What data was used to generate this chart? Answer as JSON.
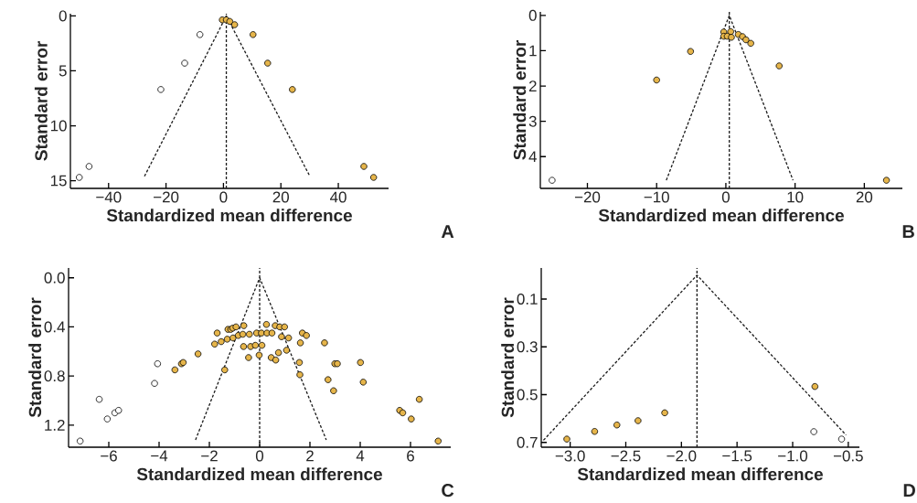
{
  "chart_data": [
    {
      "type": "scatter",
      "xlabel": "Standardized mean difference",
      "ylabel": "Standard error",
      "annotations": [
        "A"
      ],
      "marker": "circle",
      "xlim": [
        -53.3,
        57.5
      ],
      "ylim": [
        15.7,
        -0.2
      ],
      "xticks": [
        {
          "value": -40,
          "label": "−40"
        },
        {
          "value": -20,
          "label": "−20"
        },
        0,
        20,
        40
      ],
      "yticks": [
        0,
        5,
        10,
        15
      ],
      "ref_lines": [
        {
          "axis": "x",
          "value": 1.0,
          "color": "#1a1a1a",
          "line_style": "dashed"
        }
      ],
      "series": [
        {
          "color": "#e6b54a",
          "x": [
            -0.4,
            1.0,
            2.2,
            3.9,
            10.3,
            15.4,
            24,
            48.9,
            52.3
          ],
          "values": [
            0.36,
            0.36,
            0.5,
            0.8,
            1.7,
            4.3,
            6.7,
            13.7,
            14.7
          ]
        },
        {
          "color": "#ffffff",
          "x": [
            -8.2,
            -13.5,
            -21.8,
            -46.8,
            -50.2
          ],
          "values": [
            1.7,
            4.3,
            6.7,
            13.7,
            14.7
          ]
        },
        {
          "type": "line",
          "marker": "none",
          "line_style": "dashed",
          "color": "#1a1a1a",
          "x": [
            -27.5,
            1.0,
            30.1
          ],
          "values": [
            14.6,
            0,
            14.6
          ]
        }
      ]
    },
    {
      "type": "scatter",
      "xlabel": "Standardized mean difference",
      "ylabel": "Standard error",
      "annotations": [
        "B"
      ],
      "marker": "circle",
      "xlim": [
        -26.8,
        25.5
      ],
      "ylim": [
        4.9,
        -0.1
      ],
      "xticks": [
        {
          "value": -20,
          "label": "−20"
        },
        {
          "value": -10,
          "label": "−10"
        },
        0,
        10,
        20
      ],
      "yticks": [
        0,
        1,
        2,
        3,
        4
      ],
      "ref_lines": [
        {
          "axis": "x",
          "value": 0.5,
          "color": "#1a1a1a",
          "line_style": "dashed"
        }
      ],
      "series": [
        {
          "color": "#e6b54a",
          "x": [
            -0.3,
            0.7,
            -0.3,
            0.2,
            0.8,
            1.8,
            2.4,
            2.9,
            3.6,
            -5.1,
            -10.0,
            7.7,
            23.2
          ],
          "values": [
            0.47,
            0.46,
            0.59,
            0.59,
            0.62,
            0.54,
            0.6,
            0.69,
            0.79,
            1.02,
            1.83,
            1.43,
            4.67
          ]
        },
        {
          "color": "#ffffff",
          "x": [
            -25.1
          ],
          "values": [
            4.67
          ]
        },
        {
          "type": "line",
          "marker": "none",
          "line_style": "dashed",
          "color": "#1a1a1a",
          "x": [
            -8.6,
            0.5,
            9.7
          ],
          "values": [
            4.67,
            0,
            4.67
          ]
        }
      ]
    },
    {
      "type": "scatter",
      "xlabel": "Standardized mean difference",
      "ylabel": "Standard error",
      "annotations": [
        "C"
      ],
      "marker": "circle",
      "xlim": [
        -7.6,
        7.6
      ],
      "ylim": [
        1.38,
        -0.08
      ],
      "xticks": [
        {
          "value": -6,
          "label": "−6"
        },
        {
          "value": -4,
          "label": "−4"
        },
        {
          "value": -2,
          "label": "−2"
        },
        0,
        2,
        4,
        6
      ],
      "yticks": [
        {
          "value": 0,
          "label": "0.0"
        },
        0.4,
        0.8,
        1.2
      ],
      "ref_lines": [
        {
          "axis": "x",
          "value": 0,
          "color": "#1a1a1a",
          "line_style": "dashed"
        }
      ],
      "series": [
        {
          "color": "#e6b54a",
          "x": [
            -3.37,
            -3.11,
            -3.04,
            -2.45,
            -1.79,
            -1.69,
            -1.53,
            -1.39,
            -1.29,
            -1.26,
            -1.15,
            -1.07,
            -0.94,
            -1.06,
            -0.85,
            -0.63,
            -0.67,
            -0.64,
            -0.44,
            -0.41,
            -0.36,
            -0.17,
            -0.12,
            -0.02,
            0.09,
            0.07,
            0.27,
            0.29,
            0.49,
            0.46,
            0.64,
            0.62,
            0.8,
            0.99,
            0.87,
            0.75,
            1.07,
            1.15,
            1.58,
            1.62,
            1.6,
            1.7,
            1.86,
            2.58,
            2.72,
            2.94,
            2.99,
            3.09,
            4.01,
            4.12,
            5.57,
            5.69,
            6.03,
            6.35,
            7.1
          ],
          "values": [
            0.75,
            0.7,
            0.69,
            0.62,
            0.54,
            0.45,
            0.52,
            0.75,
            0.5,
            0.42,
            0.42,
            0.41,
            0.4,
            0.49,
            0.47,
            0.39,
            0.46,
            0.56,
            0.65,
            0.46,
            0.56,
            0.55,
            0.45,
            0.63,
            0.55,
            0.45,
            0.38,
            0.45,
            0.45,
            0.65,
            0.67,
            0.39,
            0.4,
            0.4,
            0.48,
            0.61,
            0.59,
            0.49,
            0.69,
            0.53,
            0.79,
            0.45,
            0.47,
            0.53,
            0.83,
            0.92,
            0.7,
            0.7,
            0.69,
            0.85,
            1.08,
            1.1,
            1.15,
            0.99,
            1.33
          ]
        },
        {
          "color": "#ffffff",
          "x": [
            -4.06,
            -4.18,
            -6.38,
            -6.06,
            -5.76,
            -5.61,
            -7.14
          ],
          "values": [
            0.7,
            0.86,
            0.99,
            1.15,
            1.1,
            1.08,
            1.33
          ]
        },
        {
          "type": "line",
          "marker": "none",
          "line_style": "dashed",
          "color": "#1a1a1a",
          "x": [
            -2.55,
            0,
            2.65
          ],
          "values": [
            1.32,
            0,
            1.32
          ]
        }
      ]
    },
    {
      "type": "scatter",
      "xlabel": "Standardized mean difference",
      "ylabel": "Standard error",
      "annotations": [
        "D"
      ],
      "marker": "circle",
      "xlim": [
        -3.26,
        -0.4
      ],
      "ylim": [
        0.72,
        -0.03
      ],
      "xticks": [
        {
          "value": -3.0,
          "label": "−3.0"
        },
        {
          "value": -2.5,
          "label": "−2.5"
        },
        {
          "value": -2.0,
          "label": "−2.0"
        },
        {
          "value": -1.5,
          "label": "−1.5"
        },
        {
          "value": -1.0,
          "label": "−1.0"
        },
        {
          "value": -0.5,
          "label": "−0.5"
        }
      ],
      "yticks": [
        0.1,
        0.3,
        0.5,
        0.7
      ],
      "ref_lines": [
        {
          "axis": "x",
          "value": -1.86,
          "color": "#1a1a1a",
          "line_style": "dashed"
        }
      ],
      "series": [
        {
          "color": "#e6b54a",
          "x": [
            -3.03,
            -2.78,
            -2.58,
            -2.39,
            -2.15,
            -0.8
          ],
          "values": [
            0.686,
            0.654,
            0.627,
            0.609,
            0.576,
            0.466
          ]
        },
        {
          "color": "#ffffff",
          "x": [
            -0.81,
            -0.56
          ],
          "values": [
            0.655,
            0.686
          ]
        },
        {
          "type": "line",
          "marker": "none",
          "line_style": "dashed",
          "color": "#1a1a1a",
          "x": [
            -3.24,
            -1.86,
            -0.52
          ],
          "values": [
            0.691,
            0,
            0.669
          ]
        }
      ]
    }
  ]
}
